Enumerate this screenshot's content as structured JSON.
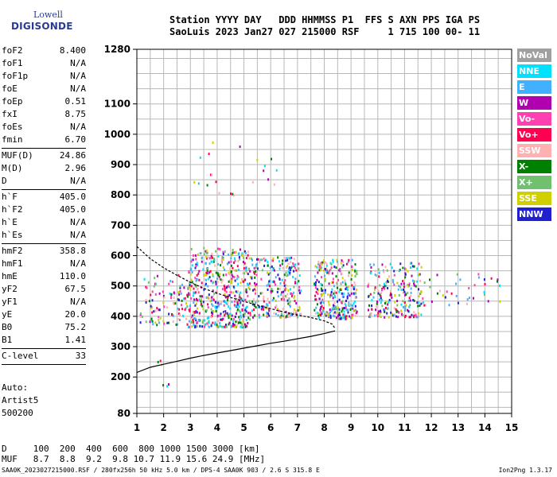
{
  "logo": {
    "line1": "Lowell",
    "line2": "DIGISONDE"
  },
  "header": {
    "line1": "Station YYYY DAY   DDD HHMMSS P1  FFS S AXN PPS IGA PS",
    "line2": "SaoLuis 2023 Jan27 027 215000 RSF     1 715 100 00- 11"
  },
  "params": {
    "group1": [
      {
        "k": "foF2",
        "v": "8.400"
      },
      {
        "k": "foF1",
        "v": "N/A"
      },
      {
        "k": "foF1p",
        "v": "N/A"
      },
      {
        "k": "foE",
        "v": "N/A"
      },
      {
        "k": "foEp",
        "v": "0.51"
      },
      {
        "k": "fxI",
        "v": "8.75"
      },
      {
        "k": "foEs",
        "v": "N/A"
      },
      {
        "k": "fmin",
        "v": "6.70"
      }
    ],
    "group2": [
      {
        "k": "MUF(D)",
        "v": "24.86"
      },
      {
        "k": "M(D)",
        "v": "2.96"
      },
      {
        "k": "D",
        "v": "N/A"
      }
    ],
    "group3": [
      {
        "k": "h`F",
        "v": "405.0"
      },
      {
        "k": "h`F2",
        "v": "405.0"
      },
      {
        "k": "h`E",
        "v": "N/A"
      },
      {
        "k": "h`Es",
        "v": "N/A"
      }
    ],
    "group4": [
      {
        "k": "hmF2",
        "v": "358.8"
      },
      {
        "k": "hmF1",
        "v": "N/A"
      },
      {
        "k": "hmE",
        "v": "110.0"
      },
      {
        "k": "yF2",
        "v": "67.5"
      },
      {
        "k": "yF1",
        "v": "N/A"
      },
      {
        "k": "yE",
        "v": "20.0"
      },
      {
        "k": "B0",
        "v": "75.2"
      },
      {
        "k": "B1",
        "v": "1.41"
      }
    ],
    "group5": [
      {
        "k": "C-level",
        "v": "33"
      }
    ]
  },
  "auto": {
    "line1": "Auto:",
    "line2": "Artist5",
    "line3": "500200"
  },
  "legend": [
    {
      "label": "NoVal",
      "color": "#a0a0a0"
    },
    {
      "label": "NNE",
      "color": "#00e0ff"
    },
    {
      "label": "E",
      "color": "#40b0ff"
    },
    {
      "label": "W",
      "color": "#b000b0"
    },
    {
      "label": "Vo-",
      "color": "#ff40b0"
    },
    {
      "label": "Vo+",
      "color": "#ff0050"
    },
    {
      "label": "SSW",
      "color": "#ffb0b0"
    },
    {
      "label": "X-",
      "color": "#008000"
    },
    {
      "label": "X+",
      "color": "#70c070"
    },
    {
      "label": "SSE",
      "color": "#d0d000"
    },
    {
      "label": "NNW",
      "color": "#2020d0"
    }
  ],
  "muf_table": {
    "d_label": "D",
    "d_values": [
      "100",
      "200",
      "400",
      "600",
      "800",
      "1000",
      "1500",
      "3000"
    ],
    "d_unit": "[km]",
    "muf_label": "MUF",
    "muf_values": [
      "8.7",
      "8.8",
      "9.2",
      "9.8",
      "10.7",
      "11.9",
      "15.6",
      "24.9"
    ],
    "muf_unit": "[MHz]"
  },
  "footer": {
    "left": "SAA0K_2023027215000.RSF / 280fx256h 50 kHz 5.0 km / DPS-4 SAA0K 903 / 2.6 S 315.8 E",
    "right": "Ion2Png 1.3.17"
  },
  "chart_data": {
    "type": "scatter",
    "title": "",
    "xlabel": "",
    "ylabel": "",
    "xlim": [
      1,
      15
    ],
    "ylim": [
      80,
      1280
    ],
    "x_ticks": [
      "1",
      "2",
      "3",
      "4",
      "5",
      "6",
      "7",
      "8",
      "9",
      "10",
      "11",
      "12",
      "13",
      "14",
      "15"
    ],
    "y_ticks": [
      "80",
      "200",
      "300",
      "400",
      "500",
      "600",
      "700",
      "800",
      "900",
      "1000",
      "1100",
      "1280"
    ],
    "grid": true,
    "legend_position": "right",
    "trace_profile": {
      "x": [
        1.0,
        1.5,
        2.0,
        2.5,
        3.0,
        3.5,
        4.0,
        4.5,
        5.0,
        5.5,
        6.0,
        6.5,
        7.0,
        7.5,
        8.0,
        8.4
      ],
      "y": [
        215,
        232,
        242,
        252,
        262,
        271,
        279,
        287,
        295,
        303,
        311,
        318,
        326,
        334,
        343,
        352
      ]
    },
    "trace_virtual": {
      "x": [
        1.0,
        1.5,
        2.0,
        2.5,
        3.0,
        3.5,
        4.0,
        4.5,
        5.0,
        5.5,
        6.0,
        6.5,
        7.0,
        7.5,
        8.0,
        8.3,
        8.4
      ],
      "y": [
        630,
        590,
        560,
        535,
        512,
        492,
        476,
        462,
        449,
        437,
        425,
        414,
        404,
        396,
        385,
        374,
        360
      ]
    },
    "echo_clusters": [
      {
        "x0": 1.1,
        "x1": 2.9,
        "y0": 375,
        "y1": 540,
        "density": 110
      },
      {
        "x0": 2.9,
        "x1": 5.2,
        "y0": 368,
        "y1": 630,
        "density": 520
      },
      {
        "x0": 5.2,
        "x1": 7.1,
        "y0": 400,
        "y1": 600,
        "density": 260
      },
      {
        "x0": 7.6,
        "x1": 9.2,
        "y0": 395,
        "y1": 590,
        "density": 300
      },
      {
        "x0": 9.6,
        "x1": 11.6,
        "y0": 400,
        "y1": 580,
        "density": 230
      },
      {
        "x0": 11.6,
        "x1": 14.9,
        "y0": 440,
        "y1": 550,
        "density": 40
      },
      {
        "x0": 3.0,
        "x1": 6.3,
        "y0": 800,
        "y1": 980,
        "density": 22
      },
      {
        "x0": 1.6,
        "x1": 2.5,
        "y0": 170,
        "y1": 260,
        "density": 6
      }
    ]
  }
}
